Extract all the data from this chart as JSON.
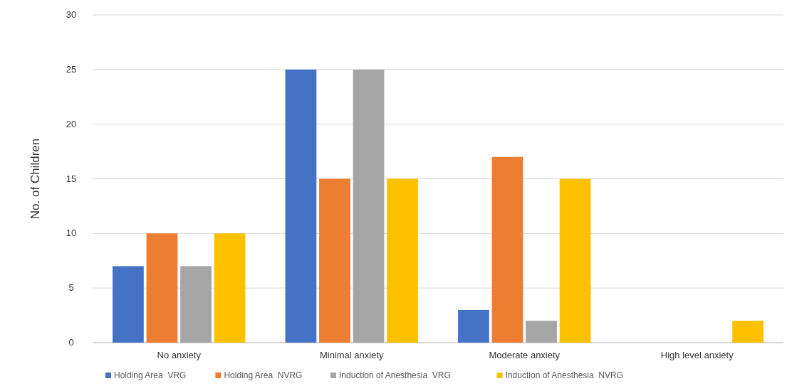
{
  "chart_data": {
    "type": "bar",
    "ylabel": "No. of Children",
    "categories": [
      "No anxiety",
      "Minimal anxiety",
      "Moderate anxiety",
      "High level anxiety"
    ],
    "series": [
      {
        "name": "Holding Area  VRG",
        "color": "#4472c4",
        "values": [
          7,
          25,
          3,
          0
        ]
      },
      {
        "name": "Holding Area  NVRG",
        "color": "#ed7d31",
        "values": [
          10,
          15,
          17,
          0
        ]
      },
      {
        "name": "Induction of Anesthesia  VRG",
        "color": "#a5a5a5",
        "values": [
          7,
          25,
          2,
          0
        ]
      },
      {
        "name": "Induction of Anesthesia  NVRG",
        "color": "#ffc000",
        "values": [
          10,
          15,
          15,
          2
        ]
      }
    ],
    "ylim": [
      0,
      30
    ],
    "yticks": [
      0,
      5,
      10,
      15,
      20,
      25,
      30
    ],
    "grid": "y",
    "legend": "bottom"
  }
}
